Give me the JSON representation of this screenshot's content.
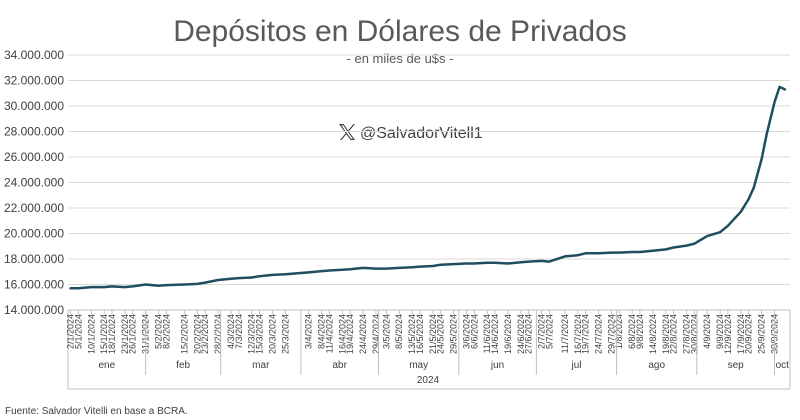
{
  "chart_data": {
    "type": "line",
    "title": "Depósitos en Dólares de Privados",
    "subtitle": "- en miles de u$s -",
    "watermark": {
      "icon": "x-logo-icon",
      "handle": "@SalvadorVitell1"
    },
    "source": "Fuente: Salvador Vitelli en base a BCRA.",
    "ylim": [
      14000000,
      34000000
    ],
    "yticks": [
      "14.000.000",
      "16.000.000",
      "18.000.000",
      "20.000.000",
      "22.000.000",
      "24.000.000",
      "26.000.000",
      "28.000.000",
      "30.000.000",
      "32.000.000",
      "34.000.000"
    ],
    "xlim_days": [
      0,
      279
    ],
    "x_tick_labels": [
      "2/1/2024",
      "5/1/2024",
      "10/1/2024",
      "15/1/2024",
      "18/1/2024",
      "23/1/2024",
      "26/1/2024",
      "31/1/2024",
      "5/2/2024",
      "8/2/2024",
      "15/2/2024",
      "20/2/2024",
      "23/2/2024",
      "28/2/2024",
      "4/3/2024",
      "7/3/2024",
      "12/3/2024",
      "15/3/2024",
      "20/3/2024",
      "25/3/2024",
      "3/4/2024",
      "8/4/2024",
      "11/4/2024",
      "16/4/2024",
      "19/4/2024",
      "24/4/2024",
      "29/4/2024",
      "3/5/2024",
      "8/5/2024",
      "13/5/2024",
      "16/5/2024",
      "21/5/2024",
      "24/5/2024",
      "29/5/2024",
      "3/6/2024",
      "6/6/2024",
      "11/6/2024",
      "14/6/2024",
      "19/6/2024",
      "24/6/2024",
      "27/6/2024",
      "2/7/2024",
      "5/7/2024",
      "11/7/2024",
      "16/7/2024",
      "19/7/2024",
      "24/7/2024",
      "29/7/2024",
      "1/8/2024",
      "6/8/2024",
      "9/8/2024",
      "14/8/2024",
      "19/8/2024",
      "22/8/2024",
      "27/8/2024",
      "30/8/2024",
      "4/9/2024",
      "9/9/2024",
      "12/9/2024",
      "17/9/2024",
      "20/9/2024",
      "25/9/2024",
      "30/9/2024"
    ],
    "months": [
      {
        "label": "ene",
        "start": 0,
        "end": 30
      },
      {
        "label": "feb",
        "start": 30,
        "end": 59
      },
      {
        "label": "mar",
        "start": 59,
        "end": 90
      },
      {
        "label": "abr",
        "start": 90,
        "end": 120
      },
      {
        "label": "may",
        "start": 120,
        "end": 151
      },
      {
        "label": "jun",
        "start": 151,
        "end": 181
      },
      {
        "label": "jul",
        "start": 181,
        "end": 212
      },
      {
        "label": "ago",
        "start": 212,
        "end": 243
      },
      {
        "label": "sep",
        "start": 243,
        "end": 273
      },
      {
        "label": "oct",
        "start": 273,
        "end": 279
      }
    ],
    "year_label": "2024",
    "color": "#1f4e5f",
    "series": [
      {
        "x": [
          "2/1/2024",
          "5/1/2024",
          "10/1/2024",
          "15/1/2024",
          "18/1/2024",
          "23/1/2024",
          "26/1/2024",
          "31/1/2024",
          "5/2/2024",
          "8/2/2024",
          "15/2/2024",
          "20/2/2024",
          "23/2/2024",
          "28/2/2024",
          "4/3/2024",
          "7/3/2024",
          "12/3/2024",
          "15/3/2024",
          "20/3/2024",
          "25/3/2024",
          "3/4/2024",
          "8/4/2024",
          "11/4/2024",
          "16/4/2024",
          "19/4/2024",
          "24/4/2024",
          "29/4/2024",
          "3/5/2024",
          "8/5/2024",
          "13/5/2024",
          "16/5/2024",
          "21/5/2024",
          "24/5/2024",
          "29/5/2024",
          "3/6/2024",
          "6/6/2024",
          "11/6/2024",
          "14/6/2024",
          "19/6/2024",
          "24/6/2024",
          "27/6/2024",
          "2/7/2024",
          "5/7/2024",
          "11/7/2024",
          "16/7/2024",
          "19/7/2024",
          "24/7/2024",
          "29/7/2024",
          "1/8/2024",
          "6/8/2024",
          "9/8/2024",
          "14/8/2024",
          "19/8/2024",
          "22/8/2024",
          "27/8/2024",
          "30/8/2024",
          "4/9/2024",
          "9/9/2024",
          "12/9/2024",
          "17/9/2024",
          "20/9/2024",
          "22/9/2024",
          "25/9/2024",
          "27/9/2024",
          "30/9/2024",
          "2/10/2024",
          "4/10/2024"
        ],
        "y": [
          15700000,
          15700000,
          15800000,
          15800000,
          15850000,
          15800000,
          15850000,
          16000000,
          15900000,
          15950000,
          16000000,
          16050000,
          16150000,
          16350000,
          16450000,
          16500000,
          16550000,
          16650000,
          16750000,
          16800000,
          16950000,
          17050000,
          17100000,
          17150000,
          17200000,
          17300000,
          17250000,
          17250000,
          17300000,
          17350000,
          17400000,
          17450000,
          17550000,
          17600000,
          17650000,
          17650000,
          17700000,
          17700000,
          17650000,
          17750000,
          17800000,
          17850000,
          17800000,
          18200000,
          18300000,
          18450000,
          18450000,
          18500000,
          18500000,
          18550000,
          18550000,
          18650000,
          18750000,
          18900000,
          19050000,
          19200000,
          19800000,
          20100000,
          20600000,
          21700000,
          22700000,
          23600000,
          25800000,
          27800000,
          30300000,
          31500000,
          31300000
        ]
      }
    ]
  }
}
